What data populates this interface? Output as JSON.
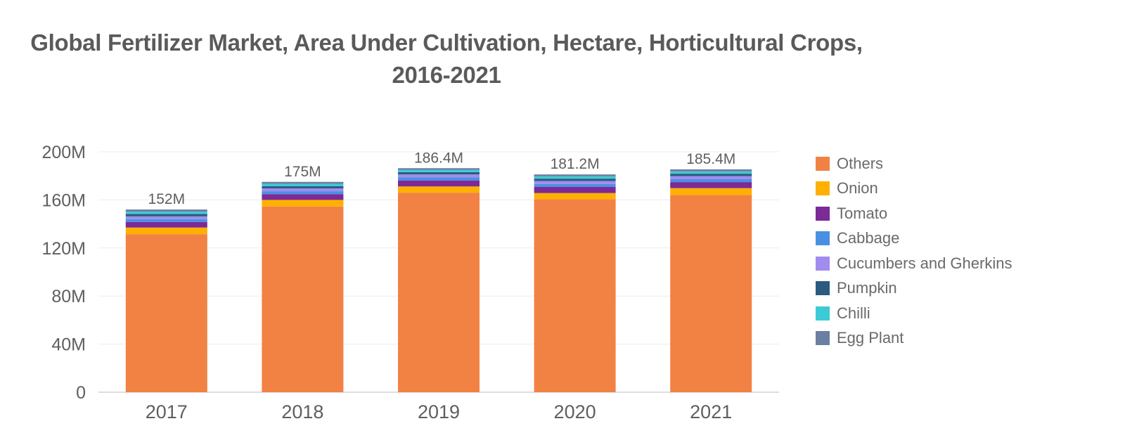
{
  "chart_data": {
    "type": "bar",
    "stacked": true,
    "title": "Global Fertilizer Market, Area Under Cultivation, Hectare, Horticultural Crops, 2016-2021",
    "categories": [
      "2017",
      "2018",
      "2019",
      "2020",
      "2021"
    ],
    "totals": [
      "152M",
      "175M",
      "186.4M",
      "181.2M",
      "185.4M"
    ],
    "ylim": [
      0,
      200000000
    ],
    "yticks": [
      {
        "value": 0,
        "label": "0"
      },
      {
        "value": 40000000,
        "label": "40M"
      },
      {
        "value": 80000000,
        "label": "80M"
      },
      {
        "value": 120000000,
        "label": "120M"
      },
      {
        "value": 160000000,
        "label": "160M"
      },
      {
        "value": 200000000,
        "label": "200M"
      }
    ],
    "grid": true,
    "legend_position": "right",
    "series": [
      {
        "name": "Others",
        "color": "#F28244",
        "values": [
          131500000,
          154500000,
          166000000,
          160500000,
          164000000
        ]
      },
      {
        "name": "Onion",
        "color": "#FFB000",
        "values": [
          5500000,
          5500000,
          5200000,
          5200000,
          5800000
        ]
      },
      {
        "name": "Tomato",
        "color": "#7B2A96",
        "values": [
          4600000,
          4800000,
          5000000,
          5100000,
          5000000
        ]
      },
      {
        "name": "Cabbage",
        "color": "#4A90E2",
        "values": [
          2400000,
          2400000,
          2500000,
          2400000,
          2400000
        ]
      },
      {
        "name": "Cucumbers and Gherkins",
        "color": "#A18CF0",
        "values": [
          2300000,
          2400000,
          2500000,
          2500000,
          2600000
        ]
      },
      {
        "name": "Pumpkin",
        "color": "#2B5C7F",
        "values": [
          2000000,
          1900000,
          1900000,
          2000000,
          2000000
        ]
      },
      {
        "name": "Chilli",
        "color": "#3CCBD6",
        "values": [
          1900000,
          1900000,
          1800000,
          1900000,
          1900000
        ]
      },
      {
        "name": "Egg Plant",
        "color": "#6B7FA3",
        "values": [
          1800000,
          1600000,
          1500000,
          1600000,
          1700000
        ]
      }
    ]
  }
}
